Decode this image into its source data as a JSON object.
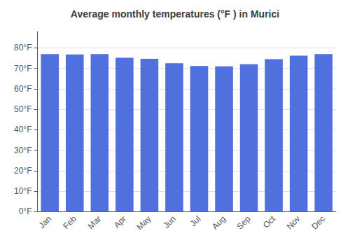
{
  "chart_data": {
    "type": "bar",
    "title": "Average monthly temperatures (°F ) in Murici",
    "categories": [
      "Jan",
      "Feb",
      "Mar",
      "Apr",
      "May",
      "Jun",
      "Jul",
      "Aug",
      "Sep",
      "Oct",
      "Nov",
      "Dec"
    ],
    "values": [
      77.0,
      76.8,
      77.0,
      75.2,
      74.7,
      72.5,
      71.2,
      71.0,
      72.0,
      74.5,
      76.2,
      77.0
    ],
    "ylim": [
      0,
      88
    ],
    "yticks": [
      {
        "value": 0,
        "label": "0°F"
      },
      {
        "value": 10,
        "label": "10°F"
      },
      {
        "value": 20,
        "label": "20°F"
      },
      {
        "value": 30,
        "label": "30°F"
      },
      {
        "value": 40,
        "label": "40°F"
      },
      {
        "value": 50,
        "label": "50°F"
      },
      {
        "value": 60,
        "label": "60°F"
      },
      {
        "value": 70,
        "label": "70°F"
      },
      {
        "value": 80,
        "label": "80°F"
      }
    ],
    "grid": true
  }
}
